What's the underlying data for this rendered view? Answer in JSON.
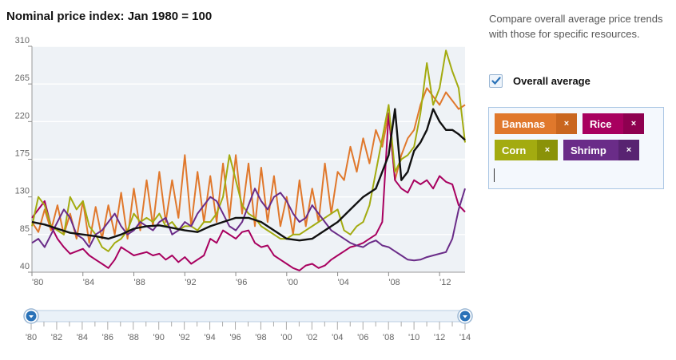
{
  "title": "Nominal price index: Jan 1980 = 100",
  "sidebar": {
    "description": "Compare overall average price trends with those for specific resources.",
    "overall_label": "Overall average",
    "overall_checked": true,
    "check_color": "#2a72b8"
  },
  "tags": [
    {
      "name": "Bananas",
      "remove": "×",
      "color": "#e0782c",
      "x_color": "#c9661f"
    },
    {
      "name": "Rice",
      "remove": "×",
      "color": "#a8005f",
      "x_color": "#8e0050"
    },
    {
      "name": "Corn",
      "remove": "×",
      "color": "#a3ab10",
      "x_color": "#8a9208"
    },
    {
      "name": "Shrimp",
      "remove": "×",
      "color": "#6a2c88",
      "x_color": "#582371"
    }
  ],
  "slider": {
    "labels": [
      "'80",
      "'82",
      "'84",
      "'86",
      "'88",
      "'90",
      "'92",
      "'94",
      "'96",
      "'98",
      "'00",
      "'02",
      "'04",
      "'06",
      "'08",
      "'10",
      "'12",
      "'14"
    ],
    "range": [
      1980,
      2014
    ],
    "handle_color": "#2a72b8"
  },
  "chart_data": {
    "type": "line",
    "xlabel": "",
    "ylabel": "",
    "xlim": [
      1980,
      2014
    ],
    "ylim": [
      40,
      310
    ],
    "yticks": [
      40,
      85,
      130,
      175,
      220,
      265,
      310
    ],
    "xtick_labels": [
      "'80",
      "'84",
      "'88",
      "'92",
      "'96",
      "'00",
      "'04",
      "'08",
      "'12"
    ],
    "xtick_values": [
      1980,
      1984,
      1988,
      1992,
      1996,
      2000,
      2004,
      2008,
      2012
    ],
    "grid": true,
    "series": [
      {
        "name": "Bananas",
        "color": "#e0782c",
        "x": [
          1980,
          1980.5,
          1981,
          1981.5,
          1982,
          1982.5,
          1983,
          1983.5,
          1984,
          1984.5,
          1985,
          1985.5,
          1986,
          1986.5,
          1987,
          1987.5,
          1988,
          1988.5,
          1989,
          1989.5,
          1990,
          1990.5,
          1991,
          1991.5,
          1992,
          1992.5,
          1993,
          1993.5,
          1994,
          1994.5,
          1995,
          1995.5,
          1996,
          1996.5,
          1997,
          1997.5,
          1998,
          1998.5,
          1999,
          1999.5,
          2000,
          2000.5,
          2001,
          2001.5,
          2002,
          2002.5,
          2003,
          2003.5,
          2004,
          2004.5,
          2005,
          2005.5,
          2006,
          2006.5,
          2007,
          2007.5,
          2008,
          2008.5,
          2009,
          2009.5,
          2010,
          2010.5,
          2011,
          2011.5,
          2012,
          2012.5,
          2013,
          2013.5,
          2014
        ],
        "y": [
          100,
          88,
          115,
          90,
          120,
          85,
          110,
          80,
          125,
          75,
          118,
          80,
          120,
          85,
          135,
          80,
          140,
          90,
          150,
          95,
          160,
          100,
          150,
          105,
          180,
          95,
          160,
          100,
          155,
          100,
          170,
          105,
          180,
          110,
          170,
          95,
          165,
          100,
          155,
          95,
          130,
          85,
          150,
          95,
          140,
          100,
          170,
          110,
          160,
          150,
          190,
          160,
          200,
          170,
          210,
          190,
          230,
          150,
          180,
          200,
          210,
          240,
          260,
          250,
          240,
          255,
          245,
          235,
          240
        ]
      },
      {
        "name": "Rice",
        "color": "#a8005f",
        "x": [
          1980,
          1980.5,
          1981,
          1981.5,
          1982,
          1982.5,
          1983,
          1983.5,
          1984,
          1984.5,
          1985,
          1985.5,
          1986,
          1986.5,
          1987,
          1987.5,
          1988,
          1988.5,
          1989,
          1989.5,
          1990,
          1990.5,
          1991,
          1991.5,
          1992,
          1992.5,
          1993,
          1993.5,
          1994,
          1994.5,
          1995,
          1995.5,
          1996,
          1996.5,
          1997,
          1997.5,
          1998,
          1998.5,
          1999,
          1999.5,
          2000,
          2000.5,
          2001,
          2001.5,
          2002,
          2002.5,
          2003,
          2003.5,
          2004,
          2004.5,
          2005,
          2005.5,
          2006,
          2006.5,
          2007,
          2007.5,
          2008,
          2008.5,
          2009,
          2009.5,
          2010,
          2010.5,
          2011,
          2011.5,
          2012,
          2012.5,
          2013,
          2013.5,
          2014
        ],
        "y": [
          105,
          115,
          125,
          95,
          80,
          70,
          62,
          65,
          68,
          60,
          55,
          50,
          45,
          55,
          70,
          65,
          60,
          62,
          64,
          60,
          62,
          55,
          60,
          52,
          58,
          50,
          55,
          60,
          80,
          75,
          90,
          85,
          80,
          88,
          90,
          75,
          70,
          72,
          60,
          55,
          50,
          45,
          42,
          48,
          50,
          45,
          48,
          55,
          60,
          65,
          70,
          72,
          75,
          80,
          85,
          100,
          230,
          150,
          140,
          135,
          150,
          145,
          150,
          140,
          155,
          148,
          145,
          120,
          112
        ]
      },
      {
        "name": "Corn",
        "color": "#a3ab10",
        "x": [
          1980,
          1980.5,
          1981,
          1981.5,
          1982,
          1982.5,
          1983,
          1983.5,
          1984,
          1984.5,
          1985,
          1985.5,
          1986,
          1986.5,
          1987,
          1987.5,
          1988,
          1988.5,
          1989,
          1989.5,
          1990,
          1990.5,
          1991,
          1991.5,
          1992,
          1992.5,
          1993,
          1993.5,
          1994,
          1994.5,
          1995,
          1995.5,
          1996,
          1996.5,
          1997,
          1997.5,
          1998,
          1998.5,
          1999,
          1999.5,
          2000,
          2000.5,
          2001,
          2001.5,
          2002,
          2002.5,
          2003,
          2003.5,
          2004,
          2004.5,
          2005,
          2005.5,
          2006,
          2006.5,
          2007,
          2007.5,
          2008,
          2008.5,
          2009,
          2009.5,
          2010,
          2010.5,
          2011,
          2011.5,
          2012,
          2012.5,
          2013,
          2013.5,
          2014
        ],
        "y": [
          95,
          130,
          120,
          95,
          90,
          85,
          130,
          115,
          125,
          95,
          85,
          70,
          65,
          75,
          80,
          90,
          110,
          100,
          105,
          100,
          110,
          95,
          100,
          90,
          95,
          95,
          90,
          100,
          100,
          110,
          130,
          180,
          150,
          120,
          110,
          105,
          95,
          90,
          85,
          80,
          80,
          85,
          85,
          90,
          95,
          100,
          105,
          110,
          115,
          90,
          85,
          95,
          100,
          120,
          160,
          200,
          240,
          160,
          175,
          180,
          190,
          230,
          290,
          240,
          260,
          305,
          280,
          260,
          195
        ]
      },
      {
        "name": "Shrimp",
        "color": "#6a2c88",
        "x": [
          1980,
          1980.5,
          1981,
          1981.5,
          1982,
          1982.5,
          1983,
          1983.5,
          1984,
          1984.5,
          1985,
          1985.5,
          1986,
          1986.5,
          1987,
          1987.5,
          1988,
          1988.5,
          1989,
          1989.5,
          1990,
          1990.5,
          1991,
          1991.5,
          1992,
          1992.5,
          1993,
          1993.5,
          1994,
          1994.5,
          1995,
          1995.5,
          1996,
          1996.5,
          1997,
          1997.5,
          1998,
          1998.5,
          1999,
          1999.5,
          2000,
          2000.5,
          2001,
          2001.5,
          2002,
          2002.5,
          2003,
          2003.5,
          2004,
          2004.5,
          2005,
          2005.5,
          2006,
          2006.5,
          2007,
          2007.5,
          2008,
          2008.5,
          2009,
          2009.5,
          2010,
          2010.5,
          2011,
          2011.5,
          2012,
          2012.5,
          2013,
          2013.5,
          2014
        ],
        "y": [
          75,
          80,
          70,
          85,
          100,
          115,
          105,
          85,
          80,
          70,
          85,
          90,
          100,
          110,
          95,
          85,
          90,
          100,
          95,
          90,
          100,
          105,
          85,
          90,
          100,
          95,
          110,
          120,
          130,
          125,
          110,
          95,
          90,
          100,
          120,
          140,
          125,
          115,
          130,
          135,
          125,
          110,
          100,
          105,
          120,
          110,
          100,
          90,
          85,
          80,
          75,
          72,
          70,
          75,
          78,
          72,
          70,
          65,
          60,
          55,
          54,
          55,
          58,
          60,
          62,
          64,
          80,
          115,
          140
        ]
      },
      {
        "name": "Overall average",
        "color": "#111111",
        "x": [
          1980,
          1981,
          1982,
          1983,
          1984,
          1985,
          1986,
          1987,
          1988,
          1989,
          1990,
          1991,
          1992,
          1993,
          1994,
          1995,
          1996,
          1997,
          1998,
          1999,
          2000,
          2001,
          2002,
          2003,
          2004,
          2005,
          2006,
          2007,
          2008,
          2008.5,
          2009,
          2009.5,
          2010,
          2010.5,
          2011,
          2011.5,
          2012,
          2012.5,
          2013,
          2013.5,
          2014
        ],
        "y": [
          100,
          97,
          92,
          87,
          85,
          83,
          80,
          85,
          92,
          95,
          96,
          93,
          90,
          88,
          95,
          100,
          105,
          105,
          100,
          90,
          80,
          78,
          80,
          90,
          100,
          115,
          130,
          140,
          180,
          235,
          150,
          160,
          185,
          195,
          210,
          235,
          220,
          210,
          210,
          205,
          198
        ]
      }
    ]
  }
}
